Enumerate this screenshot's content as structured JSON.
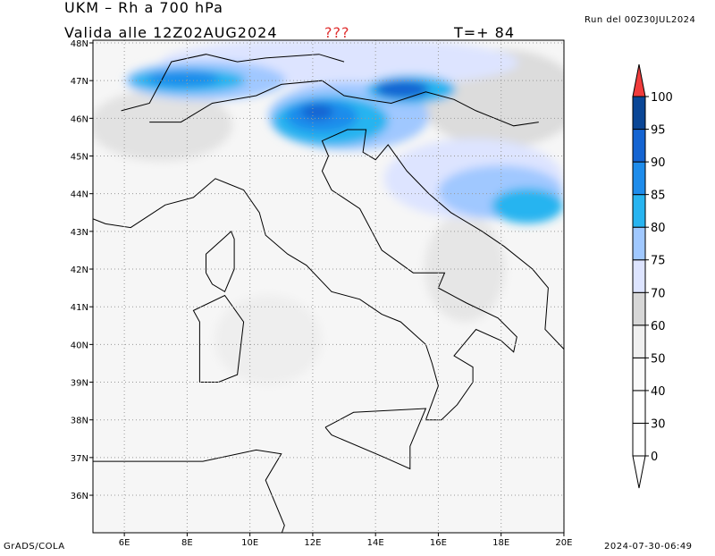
{
  "header": {
    "title": "UKM – Rh a 700 hPa",
    "valid": "Valida alle 12Z02AUG2024",
    "flag": "???",
    "forecast_step": "T=+ 84",
    "run": "Run del 00Z30JUL2024"
  },
  "map": {
    "lat_labels": [
      "48N",
      "47N",
      "46N",
      "45N",
      "44N",
      "43N",
      "42N",
      "41N",
      "40N",
      "39N",
      "38N",
      "37N",
      "36N"
    ],
    "lon_labels": [
      "6E",
      "8E",
      "10E",
      "12E",
      "14E",
      "16E",
      "18E",
      "20E"
    ]
  },
  "colorbar": {
    "levels": [
      0,
      30,
      40,
      50,
      60,
      70,
      75,
      80,
      85,
      90,
      95,
      100
    ],
    "colors": [
      "#ffffff",
      "#ffffff",
      "#ffffff",
      "#fafafa",
      "#f0f0f0",
      "#d7d7d7",
      "#dde4ff",
      "#a0c8ff",
      "#28b4f0",
      "#1e8ceb",
      "#1464d2",
      "#0a4696",
      "#f03c3c"
    ]
  },
  "footer": {
    "left": "GrADS/COLA",
    "right": "2024-07-30-06:49"
  }
}
